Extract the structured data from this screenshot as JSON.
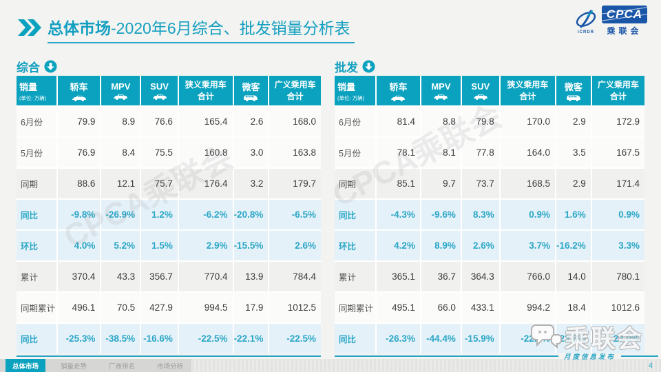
{
  "header": {
    "title_prefix": "总体市场",
    "title_rest": "-2020年6月综合、批发销量分析表"
  },
  "logo": {
    "brand": "CPCA",
    "sub": "乘联会",
    "caption": "ICRDR"
  },
  "colors": {
    "accent_teal": "#0aa2be",
    "percent_teal": "#2aa7c7",
    "logo_blue": "#1a56a8"
  },
  "chart_data": [
    {
      "type": "table",
      "title": "综合",
      "columns": [
        {
          "title": "销量",
          "subtitle": "(单位: 万辆)"
        },
        {
          "title": "轿车",
          "icon": "sedan-icon"
        },
        {
          "title": "MPV",
          "icon": "mpv-icon"
        },
        {
          "title": "SUV",
          "icon": "suv-icon"
        },
        {
          "title": "狭义乘用车",
          "title2": "合计"
        },
        {
          "title": "微客",
          "icon": "van-icon"
        },
        {
          "title": "广义乘用车",
          "title2": "合计"
        }
      ],
      "rows": [
        {
          "label": "6月份",
          "style": "plain",
          "values": [
            "79.9",
            "8.9",
            "76.6",
            "165.4",
            "2.6",
            "168.0"
          ]
        },
        {
          "label": "5月份",
          "style": "plain",
          "values": [
            "76.9",
            "8.4",
            "75.5",
            "160.8",
            "3.0",
            "163.8"
          ]
        },
        {
          "label": "同期",
          "style": "gray",
          "values": [
            "88.6",
            "12.1",
            "75.7",
            "176.4",
            "3.2",
            "179.7"
          ]
        },
        {
          "label": "同比",
          "style": "pct",
          "values": [
            "-9.8%",
            "-26.9%",
            "1.2%",
            "-6.2%",
            "-20.8%",
            "-6.5%"
          ]
        },
        {
          "label": "环比",
          "style": "pct",
          "values": [
            "4.0%",
            "5.2%",
            "1.5%",
            "2.9%",
            "-15.5%",
            "2.6%"
          ]
        },
        {
          "label": "累计",
          "style": "gray",
          "values": [
            "370.4",
            "43.3",
            "356.7",
            "770.4",
            "13.9",
            "784.4"
          ]
        },
        {
          "label": "同期累计",
          "style": "plain",
          "values": [
            "496.1",
            "70.5",
            "427.9",
            "994.5",
            "17.9",
            "1012.5"
          ]
        },
        {
          "label": "同比",
          "style": "pct",
          "values": [
            "-25.3%",
            "-38.5%",
            "-16.6%",
            "-22.5%",
            "-22.1%",
            "-22.5%"
          ]
        }
      ]
    },
    {
      "type": "table",
      "title": "批发",
      "columns": [
        {
          "title": "销量",
          "subtitle": "(单位: 万辆)"
        },
        {
          "title": "轿车",
          "icon": "sedan-icon"
        },
        {
          "title": "MPV",
          "icon": "mpv-icon"
        },
        {
          "title": "SUV",
          "icon": "suv-icon"
        },
        {
          "title": "狭义乘用车",
          "title2": "合计"
        },
        {
          "title": "微客",
          "icon": "van-icon"
        },
        {
          "title": "广义乘用车",
          "title2": "合计"
        }
      ],
      "rows": [
        {
          "label": "6月份",
          "style": "plain",
          "values": [
            "81.4",
            "8.8",
            "79.8",
            "170.0",
            "2.9",
            "172.9"
          ]
        },
        {
          "label": "5月份",
          "style": "plain",
          "values": [
            "78.1",
            "8.1",
            "77.8",
            "164.0",
            "3.5",
            "167.5"
          ]
        },
        {
          "label": "同期",
          "style": "gray",
          "values": [
            "85.1",
            "9.7",
            "73.7",
            "168.5",
            "2.9",
            "171.4"
          ]
        },
        {
          "label": "同比",
          "style": "pct",
          "values": [
            "-4.3%",
            "-9.6%",
            "8.3%",
            "0.9%",
            "1.6%",
            "0.9%"
          ]
        },
        {
          "label": "环比",
          "style": "pct",
          "values": [
            "4.2%",
            "8.9%",
            "2.6%",
            "3.7%",
            "-16.2%",
            "3.3%"
          ]
        },
        {
          "label": "累计",
          "style": "gray",
          "values": [
            "365.1",
            "36.7",
            "364.3",
            "766.0",
            "14.0",
            "780.1"
          ]
        },
        {
          "label": "同期累计",
          "style": "plain",
          "values": [
            "495.1",
            "66.0",
            "433.1",
            "994.2",
            "18.4",
            "1012.6"
          ]
        },
        {
          "label": "同比",
          "style": "pct",
          "values": [
            "-26.3%",
            "-44.4%",
            "-15.9%",
            "-22.9%",
            "-23.8%",
            "-23.0%"
          ]
        }
      ]
    }
  ],
  "watermarks": {
    "diagonal": "CPCA乘联会",
    "corner": "乘联会",
    "ribbon": "月度信息发布"
  },
  "footer": {
    "tabs": [
      {
        "label": "总体市场",
        "active": true
      },
      {
        "label": "销量走势",
        "active": false
      },
      {
        "label": "厂商排名",
        "active": false
      },
      {
        "label": "市场分析",
        "active": false
      }
    ],
    "page_number": "4"
  }
}
